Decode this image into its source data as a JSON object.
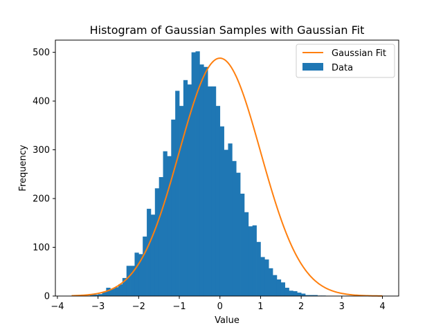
{
  "chart_data": {
    "type": "bar",
    "title": "Histogram of Gaussian Samples with Gaussian Fit",
    "xlabel": "Value",
    "ylabel": "Frequency",
    "xlim": [
      -4.05,
      4.4
    ],
    "ylim": [
      0,
      525
    ],
    "xticks": [
      -4,
      -3,
      -2,
      -1,
      0,
      1,
      2,
      3,
      4
    ],
    "yticks": [
      0,
      100,
      200,
      300,
      400,
      500
    ],
    "bins": {
      "start": -3.6,
      "width": 0.1,
      "counts": [
        1,
        1,
        2,
        1,
        3,
        3,
        4,
        8,
        17,
        15,
        18,
        24,
        37,
        62,
        62,
        89,
        86,
        122,
        179,
        167,
        221,
        244,
        297,
        287,
        362,
        421,
        390,
        443,
        434,
        500,
        502,
        475,
        470,
        430,
        430,
        390,
        348,
        300,
        313,
        277,
        253,
        210,
        172,
        143,
        145,
        111,
        80,
        75,
        57,
        43,
        34,
        28,
        17,
        11,
        10,
        7,
        5,
        2,
        2,
        2,
        1,
        1,
        0,
        0,
        0,
        0,
        0,
        0,
        0,
        0,
        0,
        0,
        0,
        0,
        0,
        0
      ]
    },
    "series": [
      {
        "name": "Data",
        "kind": "histogram",
        "color": "#1f77b4"
      },
      {
        "name": "Gaussian Fit",
        "kind": "line",
        "color": "#ff7f0e",
        "mean": 0.0,
        "std": 1.0,
        "peak": 488,
        "x_range": [
          -3.65,
          4.0
        ]
      }
    ],
    "legend": {
      "position": "upper right",
      "entries": [
        "Gaussian Fit",
        "Data"
      ]
    },
    "grid": false
  }
}
